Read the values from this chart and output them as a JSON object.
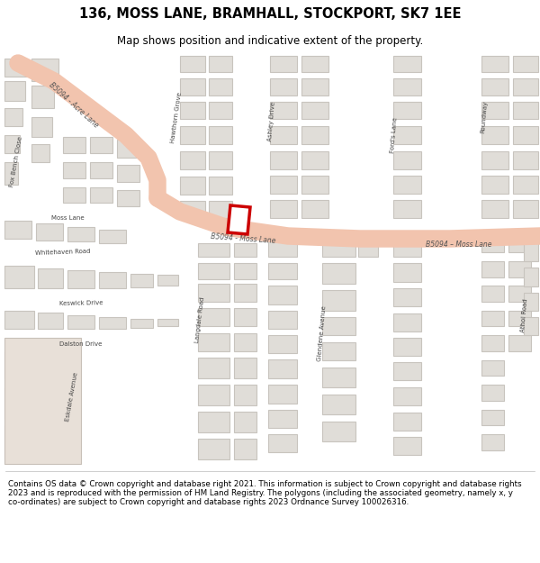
{
  "title_line1": "136, MOSS LANE, BRAMHALL, STOCKPORT, SK7 1EE",
  "title_line2": "Map shows position and indicative extent of the property.",
  "footer_text": "Contains OS data © Crown copyright and database right 2021. This information is subject to Crown copyright and database rights 2023 and is reproduced with the permission of HM Land Registry. The polygons (including the associated geometry, namely x, y co-ordinates) are subject to Crown copyright and database rights 2023 Ordnance Survey 100026316.",
  "map_bg": "#f5f3f0",
  "road_color_main": "#f2c4ae",
  "road_color_minor": "#ffffff",
  "building_color": "#e0ddd8",
  "building_edge": "#c8c4be",
  "plot_edge": "#cc0000",
  "plot_fill": "#ffffff",
  "footer_bg": "#ffffff",
  "title_bg": "#ffffff",
  "fig_width": 6.0,
  "fig_height": 6.25
}
